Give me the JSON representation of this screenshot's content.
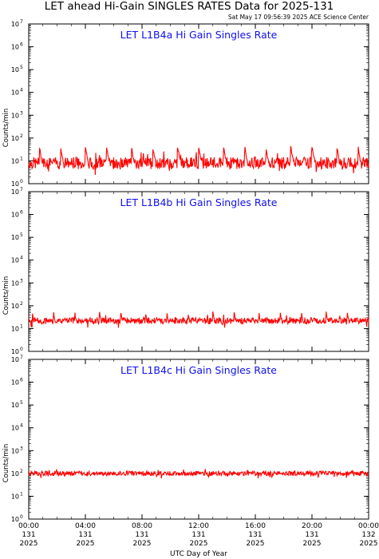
{
  "page": {
    "title": "LET ahead Hi-Gain SINGLES RATES Data for 2025-131",
    "timestamp": "Sat May 17 09:56:39 2025 ACE Science Center",
    "xlabel": "UTC Day of Year"
  },
  "chart_data": [
    {
      "type": "line",
      "title": "LET L1B4a Hi Gain Singles Rate",
      "ylabel": "Counts/min",
      "yscale": "log",
      "ylim": [
        1,
        10000000
      ],
      "xlim": [
        "2025-131 00:00",
        "2025-132 00:00"
      ],
      "color": "#ff0000",
      "baseline": 8,
      "noise": 0.13,
      "spike_height": 45,
      "spike_times": [
        "00:45",
        "02:15",
        "04:00",
        "05:30",
        "07:15",
        "08:45",
        "10:30",
        "12:00",
        "13:45",
        "15:15",
        "16:45",
        "18:30",
        "20:00",
        "21:45",
        "23:15"
      ],
      "notes": "noisy baseline ~5-12 counts/min with periodic spikes to ~50"
    },
    {
      "type": "line",
      "title": "LET L1B4b Hi Gain Singles Rate",
      "ylabel": "Counts/min",
      "yscale": "log",
      "ylim": [
        1,
        10000000
      ],
      "xlim": [
        "2025-131 00:00",
        "2025-132 00:00"
      ],
      "color": "#ff0000",
      "baseline": 22,
      "noise": 0.07,
      "spike_height": 55,
      "spike_times": [
        "00:15",
        "01:45",
        "03:15",
        "05:00",
        "06:30",
        "08:15",
        "09:45",
        "11:15",
        "13:00",
        "14:30",
        "16:15",
        "17:45",
        "19:15",
        "21:00",
        "22:30"
      ],
      "notes": "baseline ~20-25 counts/min with periodic spikes to ~60"
    },
    {
      "type": "line",
      "title": "LET L1B4c Hi Gain Singles Rate",
      "ylabel": "Counts/min",
      "yscale": "log",
      "ylim": [
        1,
        10000000
      ],
      "xlim": [
        "2025-131 00:00",
        "2025-132 00:00"
      ],
      "color": "#ff0000",
      "baseline": 100,
      "noise": 0.05,
      "spike_height": 0,
      "spike_times": [],
      "notes": "flat rate ~100 counts/min"
    }
  ],
  "y_ticks": [
    {
      "base": "10",
      "exp": "0"
    },
    {
      "base": "10",
      "exp": "1"
    },
    {
      "base": "10",
      "exp": "2"
    },
    {
      "base": "10",
      "exp": "3"
    },
    {
      "base": "10",
      "exp": "4"
    },
    {
      "base": "10",
      "exp": "5"
    },
    {
      "base": "10",
      "exp": "6"
    },
    {
      "base": "10",
      "exp": "7"
    }
  ],
  "x_ticks": [
    {
      "time": "00:00",
      "day": "131",
      "year": "2025"
    },
    {
      "time": "04:00",
      "day": "131",
      "year": "2025"
    },
    {
      "time": "08:00",
      "day": "131",
      "year": "2025"
    },
    {
      "time": "12:00",
      "day": "131",
      "year": "2025"
    },
    {
      "time": "16:00",
      "day": "131",
      "year": "2025"
    },
    {
      "time": "20:00",
      "day": "131",
      "year": "2025"
    },
    {
      "time": "00:00",
      "day": "132",
      "year": "2025"
    }
  ]
}
